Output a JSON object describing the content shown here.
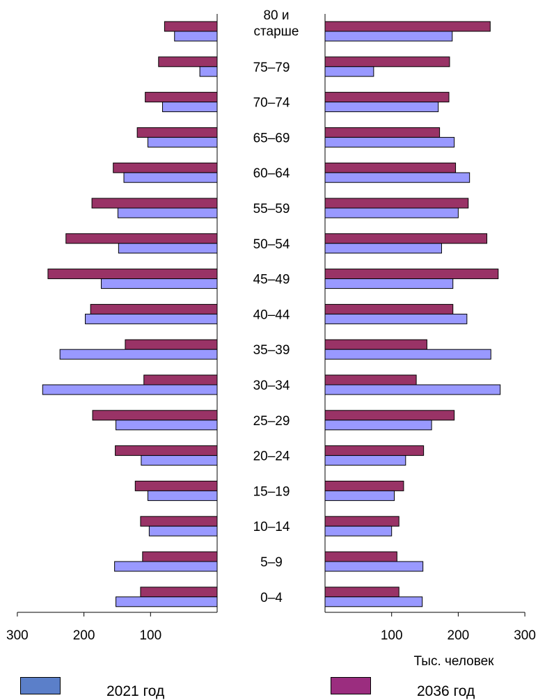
{
  "chart_data": {
    "type": "bar",
    "categories": [
      "80 и\nстарше",
      "75–79",
      "70–74",
      "65–69",
      "60–64",
      "55–59",
      "50–54",
      "45–49",
      "40–44",
      "35–39",
      "30–34",
      "25–29",
      "20–24",
      "15–19",
      "10–14",
      "5–9",
      "0–4"
    ],
    "xlabel": "Тыс. человек",
    "xlim": [
      0,
      300
    ],
    "ticks": [
      {
        "value": 300,
        "label": "300"
      },
      {
        "value": 200,
        "label": "200"
      },
      {
        "value": 100,
        "label": "100"
      }
    ],
    "right_ticks": [
      {
        "value": 100,
        "label": "100"
      },
      {
        "value": 200,
        "label": "200"
      },
      {
        "value": 300,
        "label": "300"
      }
    ],
    "series": [
      {
        "name": "2021 год",
        "color": "#9999ff",
        "left": [
          64,
          26,
          82,
          104,
          140,
          149,
          148,
          174,
          198,
          236,
          262,
          152,
          114,
          104,
          102,
          154,
          152
        ],
        "right": [
          191,
          73,
          170,
          194,
          217,
          200,
          175,
          192,
          213,
          249,
          263,
          160,
          121,
          104,
          100,
          147,
          146
        ]
      },
      {
        "name": "2036 год",
        "color": "#993366",
        "left": [
          79,
          88,
          108,
          120,
          156,
          188,
          227,
          254,
          190,
          138,
          110,
          187,
          153,
          123,
          115,
          112,
          115
        ],
        "right": [
          248,
          187,
          186,
          172,
          196,
          215,
          243,
          260,
          192,
          153,
          137,
          194,
          148,
          118,
          111,
          108,
          111
        ]
      }
    ]
  },
  "legend": {
    "series_2021": {
      "label": "2021 год",
      "color": "#5b7fc9"
    },
    "series_2036": {
      "label": "2036 год",
      "color": "#9b2d7f"
    }
  }
}
